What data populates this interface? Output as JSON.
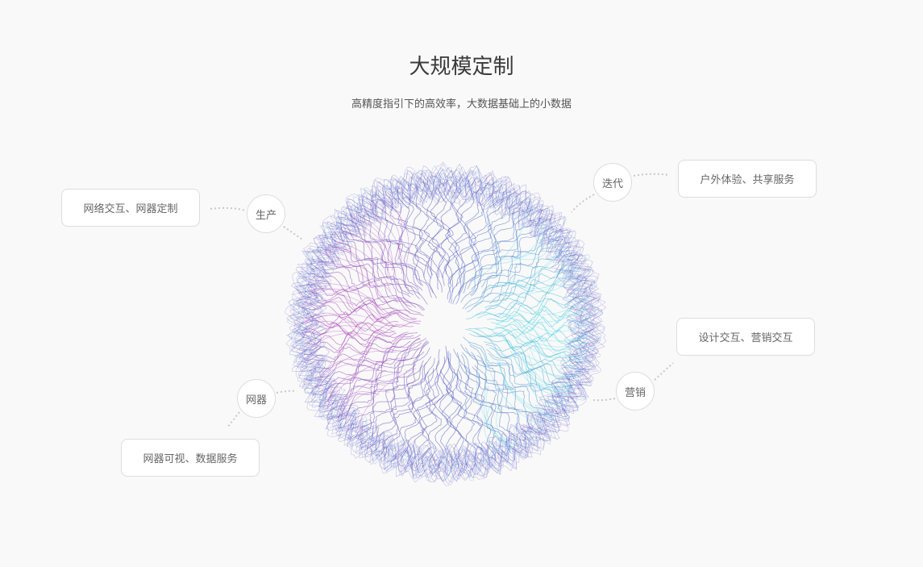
{
  "header": {
    "title": "大规模定制",
    "subtitle": "高精度指引下的高效率，大数据基础上的小数据"
  },
  "nodes": [
    {
      "label": "生产",
      "description": "网络交互、网器定制"
    },
    {
      "label": "迭代",
      "description": "户外体验、共享服务"
    },
    {
      "label": "营销",
      "description": "设计交互、营销交互"
    },
    {
      "label": "网器",
      "description": "网器可视、数据服务"
    }
  ],
  "colors": {
    "magenta": "#b03cb8",
    "cyan": "#3fd4e4",
    "blue": "#4a4fbf",
    "connector": "#c8c8c8"
  }
}
